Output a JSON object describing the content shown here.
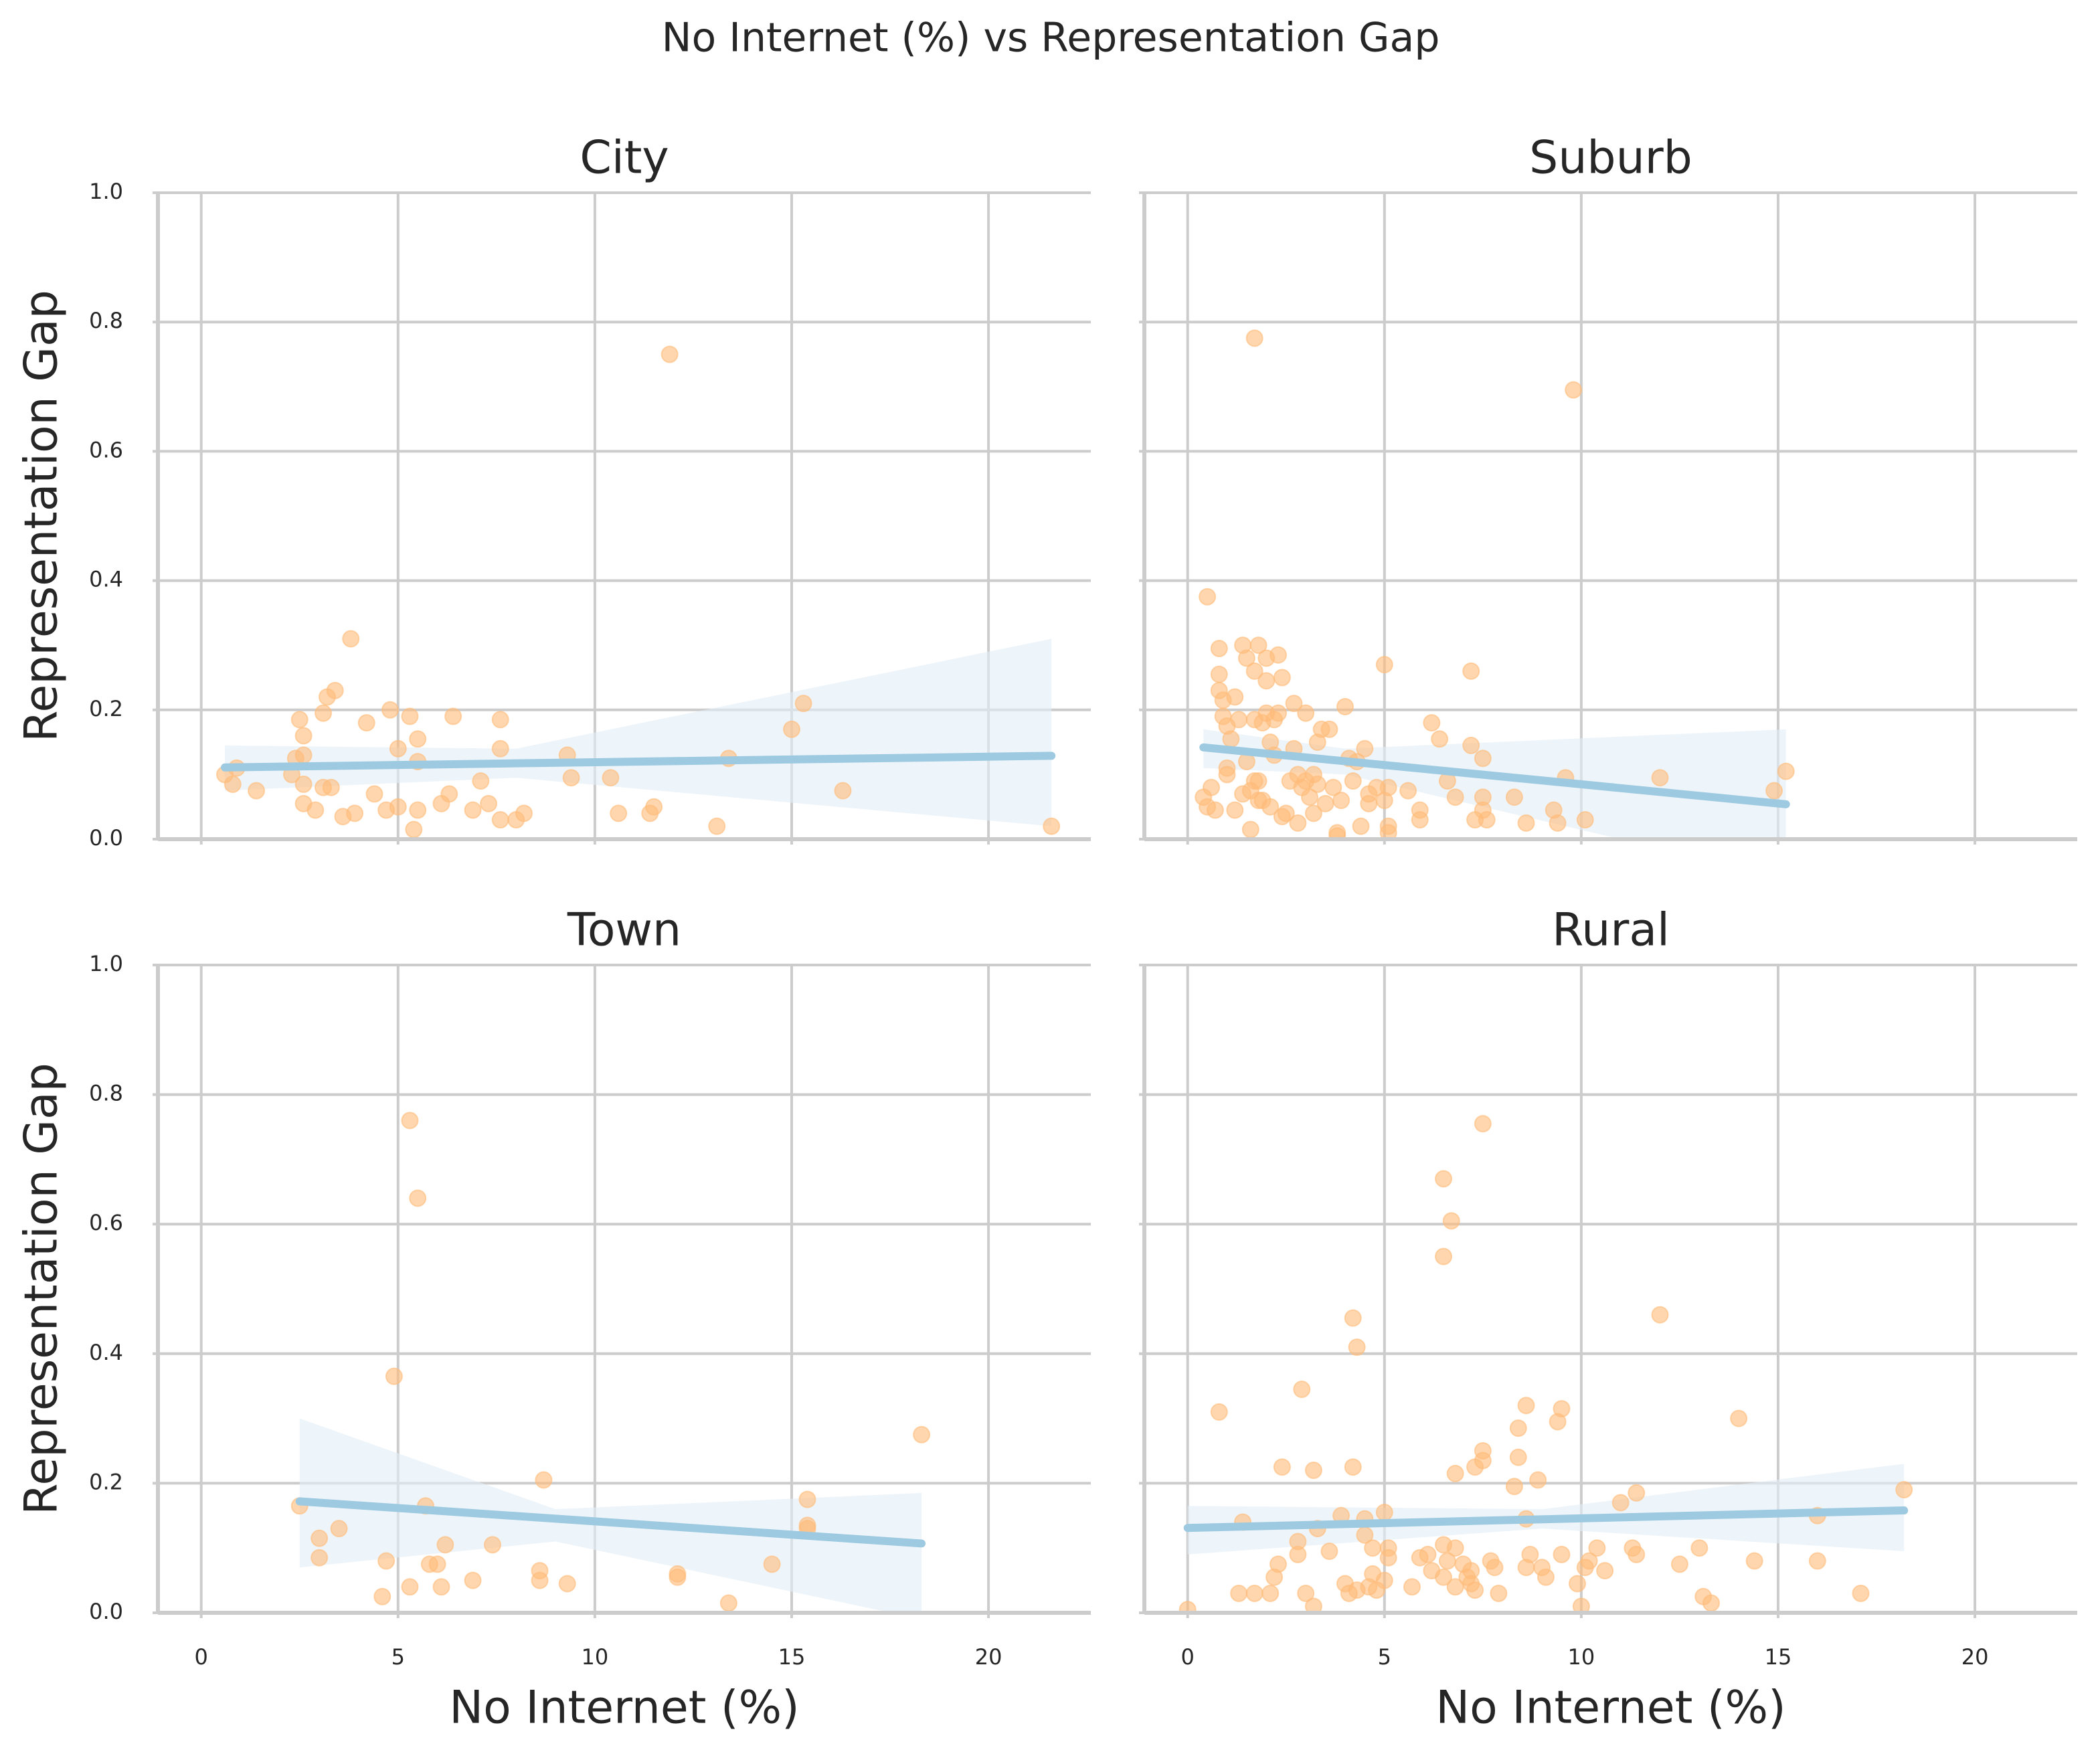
{
  "title": "No Internet (%) vs Representation Gap",
  "chart_data": [
    {
      "type": "scatter",
      "title": "City",
      "ylabel": "Representation Gap",
      "xlim": [
        -1.1,
        22.6
      ],
      "ylim": [
        0,
        1
      ],
      "xticks": [
        0,
        5,
        10,
        15,
        20
      ],
      "yticks": [
        {
          "value": 0,
          "label": "0.0"
        },
        0.2,
        0.4,
        0.6,
        0.8,
        {
          "value": 1,
          "label": "1.0"
        }
      ],
      "grid": true,
      "point_color": "#ffbb78",
      "line_color": "#9ecae1",
      "band_color": "#e3eef7",
      "points": {
        "x": [
          0.6,
          0.8,
          0.9,
          1.4,
          2.3,
          2.4,
          2.5,
          2.6,
          2.6,
          2.6,
          2.6,
          2.9,
          3.1,
          3.1,
          3.2,
          3.3,
          3.4,
          3.6,
          3.8,
          3.9,
          4.2,
          4.4,
          4.7,
          4.8,
          5.0,
          5.0,
          5.3,
          5.4,
          5.5,
          5.5,
          5.5,
          6.1,
          6.3,
          6.4,
          6.9,
          7.1,
          7.3,
          7.6,
          7.6,
          7.6,
          8.0,
          8.2,
          9.3,
          9.4,
          10.4,
          10.6,
          11.4,
          11.5,
          11.9,
          13.1,
          13.4,
          15.0,
          15.3,
          16.3,
          21.6
        ],
        "y": [
          0.1,
          0.085,
          0.11,
          0.075,
          0.1,
          0.125,
          0.185,
          0.055,
          0.13,
          0.16,
          0.085,
          0.045,
          0.195,
          0.08,
          0.22,
          0.08,
          0.23,
          0.035,
          0.31,
          0.04,
          0.18,
          0.07,
          0.045,
          0.2,
          0.14,
          0.05,
          0.19,
          0.015,
          0.155,
          0.045,
          0.12,
          0.055,
          0.07,
          0.19,
          0.045,
          0.09,
          0.055,
          0.185,
          0.14,
          0.03,
          0.03,
          0.04,
          0.13,
          0.095,
          0.095,
          0.04,
          0.04,
          0.05,
          0.75,
          0.02,
          0.125,
          0.17,
          0.21,
          0.075,
          0.02
        ]
      },
      "fit": {
        "x": [
          0.6,
          21.6
        ],
        "y": [
          0.111,
          0.129
        ]
      },
      "ci": {
        "x": [
          0.6,
          8,
          21.6
        ],
        "upper": [
          0.145,
          0.14,
          0.31
        ],
        "lower": [
          0.075,
          0.095,
          0.02
        ]
      }
    },
    {
      "type": "scatter",
      "title": "Suburb",
      "xlim": [
        -1.1,
        22.6
      ],
      "ylim": [
        0,
        1
      ],
      "xticks": [
        0,
        5,
        10,
        15,
        20
      ],
      "yticks": [
        {
          "value": 0,
          "label": "0.0"
        },
        0.2,
        0.4,
        0.6,
        0.8,
        {
          "value": 1,
          "label": "1.0"
        }
      ],
      "grid": true,
      "point_color": "#ffbb78",
      "line_color": "#9ecae1",
      "band_color": "#e3eef7",
      "points": {
        "x": [
          0.4,
          0.5,
          0.5,
          0.6,
          0.7,
          0.8,
          0.8,
          0.8,
          0.9,
          0.9,
          1.0,
          1.0,
          1.0,
          1.1,
          1.2,
          1.2,
          1.3,
          1.4,
          1.4,
          1.5,
          1.5,
          1.6,
          1.6,
          1.7,
          1.7,
          1.7,
          1.7,
          1.8,
          1.8,
          1.8,
          1.9,
          1.9,
          2.0,
          2.0,
          2.0,
          2.1,
          2.1,
          2.2,
          2.2,
          2.3,
          2.3,
          2.4,
          2.4,
          2.5,
          2.6,
          2.7,
          2.7,
          2.8,
          2.8,
          2.9,
          3.0,
          3.0,
          3.1,
          3.2,
          3.2,
          3.3,
          3.3,
          3.4,
          3.5,
          3.6,
          3.7,
          3.8,
          3.8,
          3.9,
          4.0,
          4.1,
          4.2,
          4.3,
          4.4,
          4.5,
          4.6,
          4.6,
          4.8,
          5.0,
          5.0,
          5.1,
          5.1,
          5.1,
          5.6,
          5.9,
          5.9,
          6.2,
          6.4,
          6.6,
          6.8,
          7.2,
          7.2,
          7.3,
          7.5,
          7.5,
          7.5,
          7.6,
          8.3,
          8.6,
          9.3,
          9.4,
          9.6,
          9.8,
          10.1,
          12.0,
          14.9,
          15.2
        ],
        "y": [
          0.065,
          0.05,
          0.375,
          0.08,
          0.045,
          0.255,
          0.295,
          0.23,
          0.215,
          0.19,
          0.175,
          0.11,
          0.1,
          0.155,
          0.22,
          0.045,
          0.185,
          0.3,
          0.07,
          0.28,
          0.12,
          0.075,
          0.015,
          0.26,
          0.09,
          0.185,
          0.775,
          0.09,
          0.06,
          0.3,
          0.18,
          0.06,
          0.195,
          0.245,
          0.28,
          0.15,
          0.05,
          0.13,
          0.185,
          0.285,
          0.195,
          0.035,
          0.25,
          0.04,
          0.09,
          0.21,
          0.14,
          0.025,
          0.1,
          0.08,
          0.195,
          0.09,
          0.065,
          0.04,
          0.1,
          0.085,
          0.15,
          0.17,
          0.055,
          0.17,
          0.08,
          0.01,
          0.005,
          0.06,
          0.205,
          0.125,
          0.09,
          0.12,
          0.02,
          0.14,
          0.055,
          0.07,
          0.08,
          0.27,
          0.06,
          0.02,
          0.01,
          0.08,
          0.075,
          0.045,
          0.03,
          0.18,
          0.155,
          0.09,
          0.065,
          0.26,
          0.145,
          0.03,
          0.125,
          0.065,
          0.045,
          0.03,
          0.065,
          0.025,
          0.045,
          0.025,
          0.095,
          0.695,
          0.03,
          0.095,
          0.075,
          0.105
        ]
      },
      "fit": {
        "x": [
          0.4,
          15.2
        ],
        "y": [
          0.142,
          0.054
        ]
      },
      "ci": {
        "x": [
          0.4,
          4,
          15.2
        ],
        "upper": [
          0.17,
          0.14,
          0.17
        ],
        "lower": [
          0.11,
          0.1,
          -0.06
        ]
      }
    },
    {
      "type": "scatter",
      "title": "Town",
      "xlabel": "No Internet (%)",
      "ylabel": "Representation Gap",
      "xlim": [
        -1.1,
        22.6
      ],
      "ylim": [
        0,
        1
      ],
      "xticks": [
        0,
        5,
        10,
        15,
        20
      ],
      "yticks": [
        {
          "value": 0,
          "label": "0.0"
        },
        0.2,
        0.4,
        0.6,
        0.8,
        {
          "value": 1,
          "label": "1.0"
        }
      ],
      "grid": true,
      "point_color": "#ffbb78",
      "line_color": "#9ecae1",
      "band_color": "#e3eef7",
      "points": {
        "x": [
          2.5,
          3.0,
          3.0,
          3.5,
          4.6,
          4.7,
          4.9,
          5.3,
          5.3,
          5.5,
          5.7,
          5.8,
          6.0,
          6.1,
          6.2,
          6.9,
          7.4,
          8.6,
          8.6,
          8.7,
          9.3,
          12.1,
          12.1,
          13.4,
          14.5,
          15.4,
          15.4,
          15.4,
          18.3
        ],
        "y": [
          0.165,
          0.115,
          0.085,
          0.13,
          0.025,
          0.08,
          0.365,
          0.76,
          0.04,
          0.64,
          0.165,
          0.075,
          0.075,
          0.04,
          0.105,
          0.05,
          0.105,
          0.065,
          0.05,
          0.205,
          0.045,
          0.06,
          0.055,
          0.015,
          0.075,
          0.175,
          0.135,
          0.13,
          0.275
        ]
      },
      "fit": {
        "x": [
          2.5,
          18.3
        ],
        "y": [
          0.172,
          0.107
        ]
      },
      "ci": {
        "x": [
          2.5,
          9,
          18.3
        ],
        "upper": [
          0.3,
          0.16,
          0.185
        ],
        "lower": [
          0.07,
          0.11,
          -0.01
        ]
      }
    },
    {
      "type": "scatter",
      "title": "Rural",
      "xlabel": "No Internet (%)",
      "xlim": [
        -1.1,
        22.6
      ],
      "ylim": [
        0,
        1
      ],
      "xticks": [
        0,
        5,
        10,
        15,
        20
      ],
      "yticks": [
        {
          "value": 0,
          "label": "0.0"
        },
        0.2,
        0.4,
        0.6,
        0.8,
        {
          "value": 1,
          "label": "1.0"
        }
      ],
      "grid": true,
      "point_color": "#ffbb78",
      "line_color": "#9ecae1",
      "band_color": "#e3eef7",
      "points": {
        "x": [
          0.0,
          0.8,
          1.3,
          1.4,
          1.7,
          2.1,
          2.2,
          2.3,
          2.4,
          2.8,
          2.8,
          2.9,
          3.0,
          3.2,
          3.2,
          3.3,
          3.6,
          3.9,
          4.0,
          4.1,
          4.2,
          4.2,
          4.3,
          4.3,
          4.5,
          4.5,
          4.6,
          4.7,
          4.7,
          4.8,
          5.0,
          5.0,
          5.1,
          5.1,
          5.7,
          5.9,
          6.1,
          6.2,
          6.5,
          6.5,
          6.5,
          6.5,
          6.6,
          6.7,
          6.8,
          6.8,
          6.8,
          7.0,
          7.1,
          7.2,
          7.2,
          7.3,
          7.3,
          7.5,
          7.5,
          7.5,
          7.7,
          7.8,
          7.9,
          8.3,
          8.4,
          8.4,
          8.6,
          8.6,
          8.6,
          8.7,
          8.9,
          9.0,
          9.1,
          9.4,
          9.5,
          9.5,
          9.9,
          10.0,
          10.1,
          10.2,
          10.4,
          10.6,
          11.0,
          11.3,
          11.4,
          11.4,
          12.0,
          12.5,
          13.0,
          13.1,
          13.3,
          14.0,
          14.4,
          16.0,
          16.0,
          17.1,
          18.2
        ],
        "y": [
          0.005,
          0.31,
          0.03,
          0.14,
          0.03,
          0.03,
          0.055,
          0.075,
          0.225,
          0.09,
          0.11,
          0.345,
          0.03,
          0.01,
          0.22,
          0.13,
          0.095,
          0.15,
          0.045,
          0.03,
          0.225,
          0.455,
          0.41,
          0.035,
          0.12,
          0.145,
          0.04,
          0.06,
          0.1,
          0.035,
          0.05,
          0.155,
          0.085,
          0.1,
          0.04,
          0.085,
          0.09,
          0.065,
          0.105,
          0.055,
          0.67,
          0.55,
          0.08,
          0.605,
          0.215,
          0.04,
          0.1,
          0.075,
          0.055,
          0.045,
          0.065,
          0.225,
          0.035,
          0.235,
          0.25,
          0.755,
          0.08,
          0.07,
          0.03,
          0.195,
          0.24,
          0.285,
          0.145,
          0.07,
          0.32,
          0.09,
          0.205,
          0.07,
          0.055,
          0.295,
          0.315,
          0.09,
          0.045,
          0.01,
          0.07,
          0.08,
          0.1,
          0.065,
          0.17,
          0.1,
          0.185,
          0.09,
          0.46,
          0.075,
          0.1,
          0.025,
          0.015,
          0.3,
          0.08,
          0.08,
          0.15,
          0.03,
          0.19
        ]
      },
      "fit": {
        "x": [
          0,
          18.2
        ],
        "y": [
          0.131,
          0.158
        ]
      },
      "ci": {
        "x": [
          0,
          9,
          18.2
        ],
        "upper": [
          0.165,
          0.16,
          0.23
        ],
        "lower": [
          0.09,
          0.13,
          0.095
        ]
      }
    }
  ]
}
